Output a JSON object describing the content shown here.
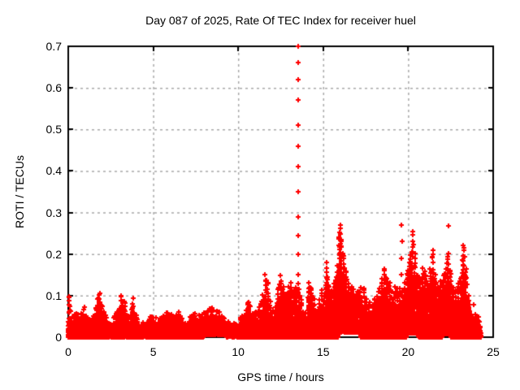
{
  "chart_data": {
    "type": "scatter",
    "title": "Day 087 of 2025, Rate Of TEC Index for receiver huel",
    "xlabel": "GPS time / hours",
    "ylabel": "ROTI / TECUs",
    "xlim": [
      0,
      25
    ],
    "ylim": [
      0,
      0.7
    ],
    "xticks": [
      0,
      5,
      10,
      15,
      20,
      25
    ],
    "yticks": [
      0,
      0.1,
      0.2,
      0.3,
      0.4,
      0.5,
      0.6,
      0.7
    ],
    "xtick_labels": [
      "0",
      "5",
      "10",
      "15",
      "20",
      "25"
    ],
    "ytick_labels": [
      "0",
      "0.1",
      "0.2",
      "0.3",
      "0.4",
      "0.5",
      "0.6",
      "0.7"
    ],
    "grid": true,
    "grid_style": "dashed",
    "grid_color": "#a8a8a8",
    "border_color": "#000000",
    "marker": "plus",
    "marker_color": "#ff0000",
    "x_data_range": [
      0,
      24.27
    ],
    "series": [
      {
        "name": "ROTI",
        "description": "Dense noisy scatter of rate-of-TEC-index values vs GPS time; envelope gives per-time maximum (hour, ROTI max)",
        "envelope": [
          [
            0.0,
            0.045
          ],
          [
            0.05,
            0.1
          ],
          [
            0.1,
            0.075
          ],
          [
            0.2,
            0.05
          ],
          [
            0.35,
            0.055
          ],
          [
            0.5,
            0.06
          ],
          [
            0.65,
            0.05
          ],
          [
            0.8,
            0.06
          ],
          [
            0.95,
            0.075
          ],
          [
            1.1,
            0.06
          ],
          [
            1.25,
            0.045
          ],
          [
            1.4,
            0.05
          ],
          [
            1.55,
            0.06
          ],
          [
            1.7,
            0.09
          ],
          [
            1.85,
            0.105
          ],
          [
            2.0,
            0.08
          ],
          [
            2.15,
            0.055
          ],
          [
            2.3,
            0.045
          ],
          [
            2.5,
            0.04
          ],
          [
            2.7,
            0.05
          ],
          [
            2.9,
            0.07
          ],
          [
            3.1,
            0.1
          ],
          [
            3.3,
            0.088
          ],
          [
            3.5,
            0.06
          ],
          [
            3.65,
            0.05
          ],
          [
            3.8,
            0.095
          ],
          [
            3.95,
            0.06
          ],
          [
            4.1,
            0.045
          ],
          [
            4.3,
            0.04
          ],
          [
            4.5,
            0.042
          ],
          [
            4.7,
            0.05
          ],
          [
            4.9,
            0.055
          ],
          [
            5.1,
            0.05
          ],
          [
            5.3,
            0.045
          ],
          [
            5.5,
            0.05
          ],
          [
            5.7,
            0.06
          ],
          [
            5.85,
            0.068
          ],
          [
            6.0,
            0.062
          ],
          [
            6.15,
            0.055
          ],
          [
            6.3,
            0.05
          ],
          [
            6.5,
            0.065
          ],
          [
            6.7,
            0.05
          ],
          [
            6.9,
            0.042
          ],
          [
            7.1,
            0.045
          ],
          [
            7.3,
            0.055
          ],
          [
            7.45,
            0.062
          ],
          [
            7.6,
            0.05
          ],
          [
            7.8,
            0.055
          ],
          [
            8.0,
            0.06
          ],
          [
            8.2,
            0.068
          ],
          [
            8.4,
            0.072
          ],
          [
            8.6,
            0.068
          ],
          [
            8.8,
            0.062
          ],
          [
            9.0,
            0.058
          ],
          [
            9.2,
            0.05
          ],
          [
            9.4,
            0.042
          ],
          [
            9.6,
            0.038
          ],
          [
            9.8,
            0.042
          ],
          [
            10.0,
            0.045
          ],
          [
            10.2,
            0.05
          ],
          [
            10.4,
            0.06
          ],
          [
            10.6,
            0.085
          ],
          [
            10.75,
            0.07
          ],
          [
            10.9,
            0.06
          ],
          [
            11.1,
            0.065
          ],
          [
            11.3,
            0.08
          ],
          [
            11.45,
            0.1
          ],
          [
            11.6,
            0.15
          ],
          [
            11.75,
            0.13
          ],
          [
            11.9,
            0.085
          ],
          [
            12.05,
            0.07
          ],
          [
            12.2,
            0.08
          ],
          [
            12.35,
            0.12
          ],
          [
            12.5,
            0.15
          ],
          [
            12.65,
            0.12
          ],
          [
            12.8,
            0.1
          ],
          [
            12.95,
            0.12
          ],
          [
            13.1,
            0.13
          ],
          [
            13.25,
            0.11
          ],
          [
            13.4,
            0.12
          ],
          [
            13.55,
            0.13
          ],
          [
            13.7,
            0.09
          ],
          [
            13.85,
            0.06
          ],
          [
            14.0,
            0.06
          ],
          [
            14.15,
            0.13
          ],
          [
            14.3,
            0.12
          ],
          [
            14.45,
            0.09
          ],
          [
            14.6,
            0.07
          ],
          [
            14.75,
            0.09
          ],
          [
            14.9,
            0.115
          ],
          [
            15.05,
            0.1
          ],
          [
            15.2,
            0.18
          ],
          [
            15.35,
            0.12
          ],
          [
            15.5,
            0.11
          ],
          [
            15.65,
            0.13
          ],
          [
            15.8,
            0.17
          ],
          [
            15.95,
            0.25
          ],
          [
            16.05,
            0.26
          ],
          [
            16.2,
            0.2
          ],
          [
            16.35,
            0.16
          ],
          [
            16.5,
            0.13
          ],
          [
            16.65,
            0.12
          ],
          [
            16.8,
            0.115
          ],
          [
            17.0,
            0.11
          ],
          [
            17.2,
            0.12
          ],
          [
            17.4,
            0.115
          ],
          [
            17.55,
            0.09
          ],
          [
            17.7,
            0.085
          ],
          [
            17.85,
            0.08
          ],
          [
            18.0,
            0.09
          ],
          [
            18.15,
            0.1
          ],
          [
            18.3,
            0.12
          ],
          [
            18.45,
            0.14
          ],
          [
            18.6,
            0.165
          ],
          [
            18.75,
            0.14
          ],
          [
            18.9,
            0.13
          ],
          [
            19.05,
            0.11
          ],
          [
            19.2,
            0.12
          ],
          [
            19.35,
            0.115
          ],
          [
            19.5,
            0.12
          ],
          [
            19.65,
            0.11
          ],
          [
            19.8,
            0.13
          ],
          [
            19.95,
            0.16
          ],
          [
            20.1,
            0.2
          ],
          [
            20.25,
            0.245
          ],
          [
            20.4,
            0.2
          ],
          [
            20.55,
            0.15
          ],
          [
            20.7,
            0.14
          ],
          [
            20.85,
            0.165
          ],
          [
            21.0,
            0.16
          ],
          [
            21.15,
            0.13
          ],
          [
            21.3,
            0.165
          ],
          [
            21.45,
            0.21
          ],
          [
            21.6,
            0.15
          ],
          [
            21.75,
            0.12
          ],
          [
            21.9,
            0.135
          ],
          [
            22.05,
            0.15
          ],
          [
            22.2,
            0.165
          ],
          [
            22.35,
            0.2
          ],
          [
            22.5,
            0.16
          ],
          [
            22.65,
            0.12
          ],
          [
            22.8,
            0.11
          ],
          [
            22.95,
            0.13
          ],
          [
            23.1,
            0.14
          ],
          [
            23.25,
            0.22
          ],
          [
            23.4,
            0.165
          ],
          [
            23.55,
            0.1
          ],
          [
            23.7,
            0.07
          ],
          [
            23.85,
            0.08
          ],
          [
            24.0,
            0.06
          ],
          [
            24.1,
            0.05
          ],
          [
            24.27,
            0.045
          ]
        ],
        "outlier_columns": [
          {
            "hour": 13.52,
            "values": [
              0.7,
              0.66,
              0.62,
              0.57,
              0.51,
              0.46,
              0.41,
              0.35,
              0.29,
              0.245,
              0.2,
              0.15
            ]
          },
          {
            "hour": 19.62,
            "values": [
              0.27,
              0.23,
              0.19,
              0.15,
              0.11
            ]
          }
        ],
        "outlier_points": [
          [
            16.02,
            0.27
          ],
          [
            22.37,
            0.268
          ],
          [
            20.28,
            0.255
          ],
          [
            23.28,
            0.215
          ]
        ],
        "lifted_floor_segments": [
          [
            8.0,
            9.3,
            0.006
          ],
          [
            15.9,
            17.2,
            0.012
          ],
          [
            19.9,
            20.6,
            0.01
          ],
          [
            22.0,
            22.5,
            0.008
          ]
        ]
      }
    ]
  }
}
